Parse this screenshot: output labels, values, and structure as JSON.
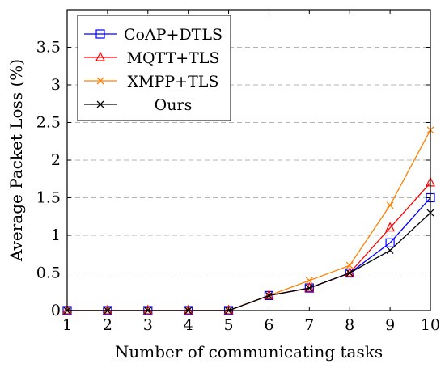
{
  "chart_data": {
    "type": "line",
    "title": "",
    "xlabel": "Number of communicating tasks",
    "ylabel": "Average Packet Loss (%)",
    "x": [
      1,
      2,
      3,
      4,
      5,
      6,
      7,
      8,
      9,
      10
    ],
    "xlim": [
      1,
      10
    ],
    "ylim": [
      0,
      4
    ],
    "xticks": [
      1,
      2,
      3,
      4,
      5,
      6,
      7,
      8,
      9,
      10
    ],
    "yticks": [
      0,
      0.5,
      1,
      1.5,
      2,
      2.5,
      3,
      3.5
    ],
    "grid": "horizontal dashed",
    "legend_position": "top-left",
    "series": [
      {
        "name": "CoAP+DTLS",
        "color": "#0000ff",
        "marker": "square",
        "values": [
          0,
          0,
          0,
          0,
          0,
          0.2,
          0.3,
          0.5,
          0.9,
          1.5
        ]
      },
      {
        "name": "MQTT+TLS",
        "color": "#ff0000",
        "marker": "triangle",
        "values": [
          0,
          0,
          0,
          0,
          0,
          0.2,
          0.3,
          0.5,
          1.1,
          1.7
        ]
      },
      {
        "name": "XMPP+TLS",
        "color": "#ff8000",
        "marker": "x",
        "values": [
          0,
          0,
          0,
          0,
          0,
          0.2,
          0.4,
          0.6,
          1.4,
          2.4
        ]
      },
      {
        "name": "Ours",
        "color": "#000000",
        "marker": "x",
        "values": [
          0,
          0,
          0,
          0,
          0,
          0.2,
          0.3,
          0.5,
          0.8,
          1.3
        ]
      }
    ]
  }
}
